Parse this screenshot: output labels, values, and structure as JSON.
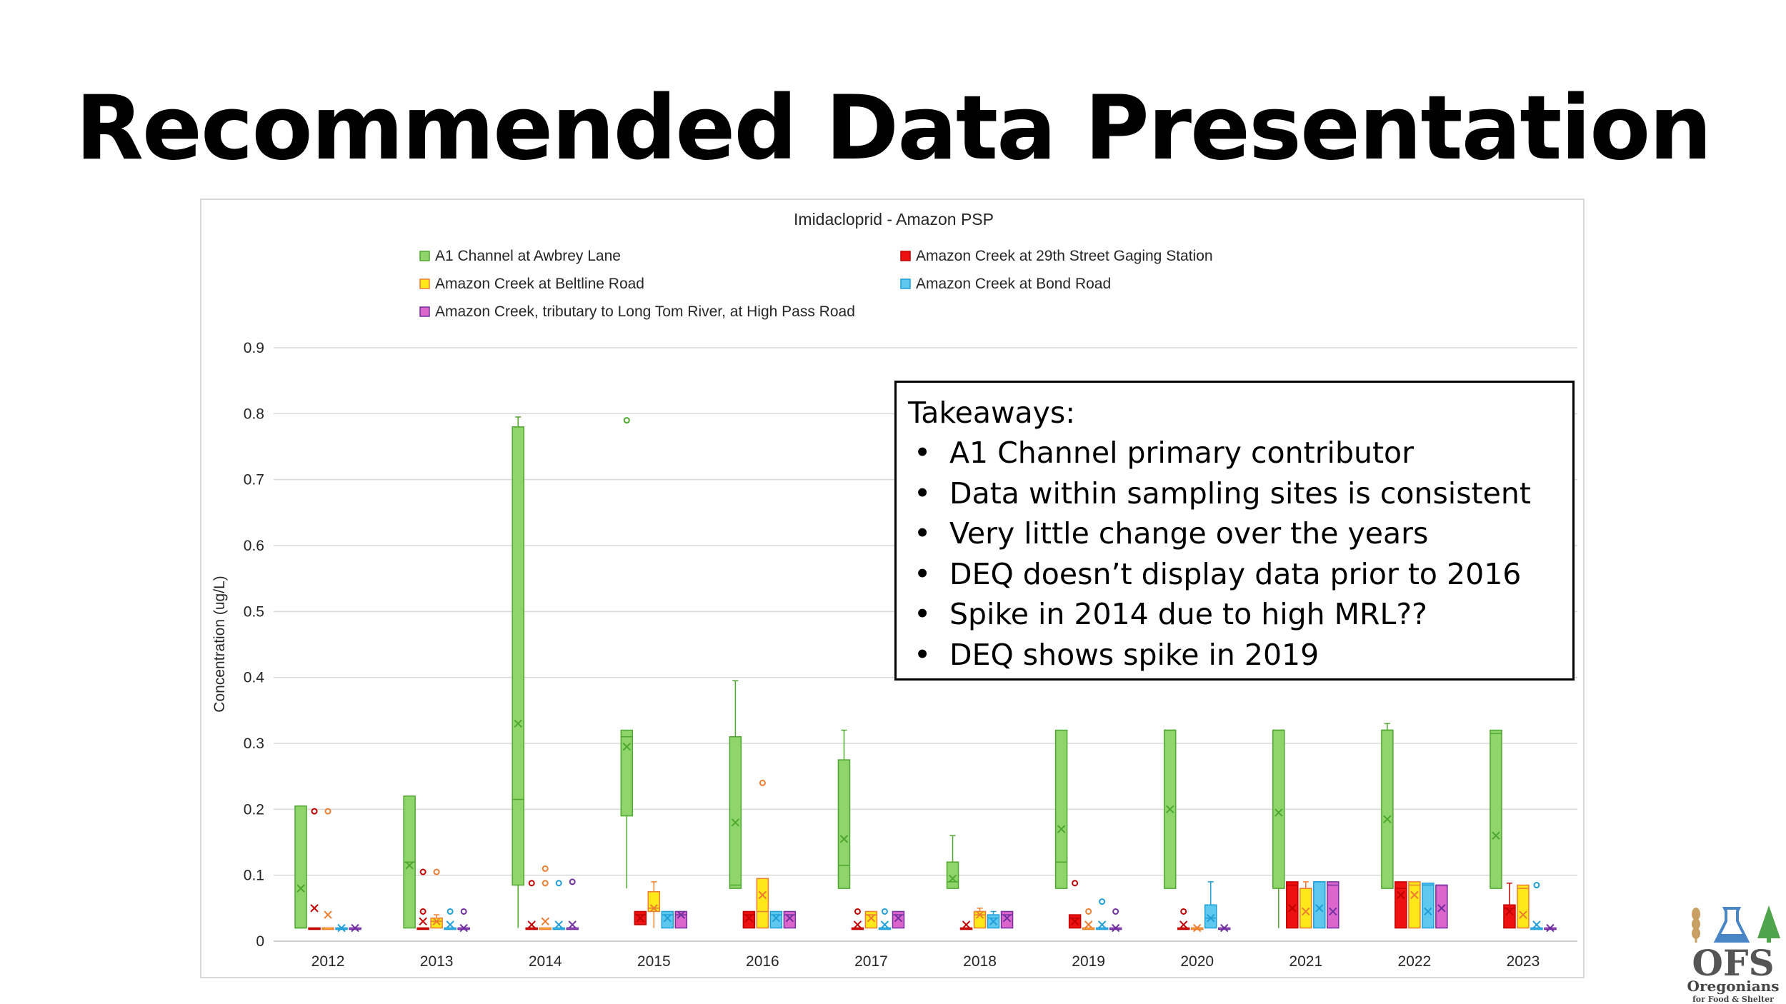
{
  "slide": {
    "title": "Recommended Data Presentation"
  },
  "takeaways": {
    "heading": "Takeaways:",
    "items": [
      "A1 Channel primary contributor",
      "Data within sampling sites is consistent",
      "Very little change over the years",
      "DEQ doesn’t display data prior to 2016",
      "Spike in 2014 due to high MRL??",
      "DEQ shows spike in 2019"
    ]
  },
  "logo": {
    "text": "OFS",
    "subtitle_1": "Oregonians",
    "subtitle_2": "for Food & Shelter"
  },
  "chart_data": {
    "type": "box",
    "title": "Imidacloprid - Amazon PSP",
    "ylabel": "Concentration (ug/L)",
    "xlabel": "",
    "ylim": [
      0,
      0.9
    ],
    "yticks": [
      "0",
      "0.1",
      "0.2",
      "0.3",
      "0.4",
      "0.5",
      "0.6",
      "0.7",
      "0.8",
      "0.9"
    ],
    "grid": true,
    "legend_position": "top",
    "categories": [
      "2012",
      "2013",
      "2014",
      "2015",
      "2016",
      "2017",
      "2018",
      "2019",
      "2020",
      "2021",
      "2022",
      "2023"
    ],
    "series": [
      {
        "name": "A1 Channel at Awbrey Lane",
        "color": "#8fd56b",
        "stroke": "#4ea72e",
        "boxes": [
          {
            "min": 0.02,
            "q1": 0.02,
            "median": 0.02,
            "q3": 0.205,
            "max": 0.205,
            "mean": 0.08,
            "outliers": []
          },
          {
            "min": 0.02,
            "q1": 0.02,
            "median": 0.12,
            "q3": 0.22,
            "max": 0.22,
            "mean": 0.115,
            "outliers": []
          },
          {
            "min": 0.02,
            "q1": 0.085,
            "median": 0.215,
            "q3": 0.78,
            "max": 0.795,
            "mean": 0.33,
            "outliers": []
          },
          {
            "min": 0.08,
            "q1": 0.19,
            "median": 0.31,
            "q3": 0.32,
            "max": 0.32,
            "mean": 0.295,
            "outliers": [
              0.79
            ]
          },
          {
            "min": 0.08,
            "q1": 0.08,
            "median": 0.085,
            "q3": 0.31,
            "max": 0.395,
            "mean": 0.18,
            "outliers": []
          },
          {
            "min": 0.08,
            "q1": 0.08,
            "median": 0.115,
            "q3": 0.275,
            "max": 0.32,
            "mean": 0.155,
            "outliers": []
          },
          {
            "min": 0.08,
            "q1": 0.08,
            "median": 0.09,
            "q3": 0.12,
            "max": 0.16,
            "mean": 0.095,
            "outliers": []
          },
          {
            "min": 0.08,
            "q1": 0.08,
            "median": 0.12,
            "q3": 0.32,
            "max": 0.32,
            "mean": 0.17,
            "outliers": []
          },
          {
            "min": 0.08,
            "q1": 0.08,
            "median": 0.32,
            "q3": 0.32,
            "max": 0.32,
            "mean": 0.2,
            "outliers": []
          },
          {
            "min": 0.02,
            "q1": 0.08,
            "median": 0.32,
            "q3": 0.32,
            "max": 0.32,
            "mean": 0.195,
            "outliers": []
          },
          {
            "min": 0.08,
            "q1": 0.08,
            "median": 0.32,
            "q3": 0.32,
            "max": 0.33,
            "mean": 0.185,
            "outliers": []
          },
          {
            "min": 0.08,
            "q1": 0.08,
            "median": 0.315,
            "q3": 0.32,
            "max": 0.32,
            "mean": 0.16,
            "outliers": []
          }
        ]
      },
      {
        "name": "Amazon Creek at 29th Street Gaging Station",
        "color": "#ee1111",
        "stroke": "#c00000",
        "boxes": [
          {
            "min": 0.02,
            "q1": 0.02,
            "median": 0.02,
            "q3": 0.02,
            "max": 0.02,
            "mean": 0.05,
            "outliers": [
              0.197
            ]
          },
          {
            "min": 0.02,
            "q1": 0.02,
            "median": 0.02,
            "q3": 0.02,
            "max": 0.02,
            "mean": 0.03,
            "outliers": [
              0.105,
              0.045
            ]
          },
          {
            "min": 0.02,
            "q1": 0.02,
            "median": 0.02,
            "q3": 0.02,
            "max": 0.02,
            "mean": 0.025,
            "outliers": [
              0.088
            ]
          },
          {
            "min": 0.025,
            "q1": 0.025,
            "median": 0.04,
            "q3": 0.045,
            "max": 0.045,
            "mean": 0.035,
            "outliers": []
          },
          {
            "min": 0.02,
            "q1": 0.02,
            "median": 0.04,
            "q3": 0.045,
            "max": 0.045,
            "mean": 0.035,
            "outliers": []
          },
          {
            "min": 0.02,
            "q1": 0.02,
            "median": 0.02,
            "q3": 0.02,
            "max": 0.02,
            "mean": 0.025,
            "outliers": [
              0.045
            ]
          },
          {
            "min": 0.02,
            "q1": 0.02,
            "median": 0.02,
            "q3": 0.02,
            "max": 0.02,
            "mean": 0.025,
            "outliers": []
          },
          {
            "min": 0.02,
            "q1": 0.02,
            "median": 0.035,
            "q3": 0.04,
            "max": 0.04,
            "mean": 0.03,
            "outliers": [
              0.088
            ]
          },
          {
            "min": 0.02,
            "q1": 0.02,
            "median": 0.02,
            "q3": 0.02,
            "max": 0.02,
            "mean": 0.025,
            "outliers": [
              0.045
            ]
          },
          {
            "min": 0.02,
            "q1": 0.02,
            "median": 0.085,
            "q3": 0.09,
            "max": 0.09,
            "mean": 0.05,
            "outliers": []
          },
          {
            "min": 0.02,
            "q1": 0.02,
            "median": 0.08,
            "q3": 0.09,
            "max": 0.09,
            "mean": 0.07,
            "outliers": []
          },
          {
            "min": 0.02,
            "q1": 0.02,
            "median": 0.05,
            "q3": 0.055,
            "max": 0.088,
            "mean": 0.045,
            "outliers": []
          }
        ]
      },
      {
        "name": "Amazon Creek at Beltline Road",
        "color": "#ffe81a",
        "stroke": "#ed7d31",
        "boxes": [
          {
            "min": 0.02,
            "q1": 0.02,
            "median": 0.02,
            "q3": 0.02,
            "max": 0.02,
            "mean": 0.04,
            "outliers": [
              0.197
            ]
          },
          {
            "min": 0.02,
            "q1": 0.02,
            "median": 0.03,
            "q3": 0.035,
            "max": 0.04,
            "mean": 0.03,
            "outliers": [
              0.105
            ]
          },
          {
            "min": 0.02,
            "q1": 0.02,
            "median": 0.02,
            "q3": 0.02,
            "max": 0.02,
            "mean": 0.03,
            "outliers": [
              0.11,
              0.088
            ]
          },
          {
            "min": 0.02,
            "q1": 0.045,
            "median": 0.05,
            "q3": 0.075,
            "max": 0.09,
            "mean": 0.05,
            "outliers": []
          },
          {
            "min": 0.02,
            "q1": 0.02,
            "median": 0.045,
            "q3": 0.095,
            "max": 0.095,
            "mean": 0.07,
            "outliers": [
              0.24
            ]
          },
          {
            "min": 0.02,
            "q1": 0.02,
            "median": 0.04,
            "q3": 0.045,
            "max": 0.045,
            "mean": 0.035,
            "outliers": []
          },
          {
            "min": 0.02,
            "q1": 0.02,
            "median": 0.04,
            "q3": 0.045,
            "max": 0.05,
            "mean": 0.04,
            "outliers": []
          },
          {
            "min": 0.02,
            "q1": 0.02,
            "median": 0.02,
            "q3": 0.02,
            "max": 0.02,
            "mean": 0.025,
            "outliers": [
              0.045
            ]
          },
          {
            "min": 0.02,
            "q1": 0.02,
            "median": 0.02,
            "q3": 0.02,
            "max": 0.02,
            "mean": 0.02,
            "outliers": []
          },
          {
            "min": 0.02,
            "q1": 0.02,
            "median": 0.08,
            "q3": 0.08,
            "max": 0.09,
            "mean": 0.045,
            "outliers": []
          },
          {
            "min": 0.02,
            "q1": 0.02,
            "median": 0.085,
            "q3": 0.09,
            "max": 0.09,
            "mean": 0.07,
            "outliers": []
          },
          {
            "min": 0.02,
            "q1": 0.02,
            "median": 0.08,
            "q3": 0.085,
            "max": 0.085,
            "mean": 0.04,
            "outliers": []
          }
        ]
      },
      {
        "name": "Amazon Creek at Bond Road",
        "color": "#5ec8ee",
        "stroke": "#1f9ed8",
        "boxes": [
          {
            "min": 0.02,
            "q1": 0.02,
            "median": 0.02,
            "q3": 0.02,
            "max": 0.02,
            "mean": 0.02,
            "outliers": []
          },
          {
            "min": 0.02,
            "q1": 0.02,
            "median": 0.02,
            "q3": 0.02,
            "max": 0.02,
            "mean": 0.025,
            "outliers": [
              0.045
            ]
          },
          {
            "min": 0.02,
            "q1": 0.02,
            "median": 0.02,
            "q3": 0.02,
            "max": 0.02,
            "mean": 0.025,
            "outliers": [
              0.088
            ]
          },
          {
            "min": 0.02,
            "q1": 0.02,
            "median": 0.04,
            "q3": 0.045,
            "max": 0.045,
            "mean": 0.035,
            "outliers": []
          },
          {
            "min": 0.02,
            "q1": 0.02,
            "median": 0.04,
            "q3": 0.045,
            "max": 0.045,
            "mean": 0.035,
            "outliers": []
          },
          {
            "min": 0.02,
            "q1": 0.02,
            "median": 0.02,
            "q3": 0.02,
            "max": 0.02,
            "mean": 0.025,
            "outliers": [
              0.045
            ]
          },
          {
            "min": 0.02,
            "q1": 0.02,
            "median": 0.035,
            "q3": 0.04,
            "max": 0.045,
            "mean": 0.03,
            "outliers": []
          },
          {
            "min": 0.02,
            "q1": 0.02,
            "median": 0.02,
            "q3": 0.02,
            "max": 0.02,
            "mean": 0.025,
            "outliers": [
              0.06
            ]
          },
          {
            "min": 0.02,
            "q1": 0.02,
            "median": 0.035,
            "q3": 0.055,
            "max": 0.09,
            "mean": 0.035,
            "outliers": []
          },
          {
            "min": 0.02,
            "q1": 0.02,
            "median": 0.09,
            "q3": 0.09,
            "max": 0.09,
            "mean": 0.05,
            "outliers": []
          },
          {
            "min": 0.02,
            "q1": 0.02,
            "median": 0.085,
            "q3": 0.088,
            "max": 0.088,
            "mean": 0.045,
            "outliers": []
          },
          {
            "min": 0.02,
            "q1": 0.02,
            "median": 0.02,
            "q3": 0.02,
            "max": 0.02,
            "mean": 0.025,
            "outliers": [
              0.085
            ]
          }
        ]
      },
      {
        "name": "Amazon Creek, tributary to Long Tom River, at High Pass Road",
        "color": "#dd66cc",
        "stroke": "#7030a0",
        "boxes": [
          {
            "min": 0.02,
            "q1": 0.02,
            "median": 0.02,
            "q3": 0.02,
            "max": 0.02,
            "mean": 0.02,
            "outliers": []
          },
          {
            "min": 0.02,
            "q1": 0.02,
            "median": 0.02,
            "q3": 0.02,
            "max": 0.02,
            "mean": 0.02,
            "outliers": [
              0.045
            ]
          },
          {
            "min": 0.02,
            "q1": 0.02,
            "median": 0.02,
            "q3": 0.02,
            "max": 0.02,
            "mean": 0.025,
            "outliers": [
              0.09
            ]
          },
          {
            "min": 0.02,
            "q1": 0.02,
            "median": 0.04,
            "q3": 0.045,
            "max": 0.045,
            "mean": 0.04,
            "outliers": []
          },
          {
            "min": 0.02,
            "q1": 0.02,
            "median": 0.04,
            "q3": 0.045,
            "max": 0.045,
            "mean": 0.035,
            "outliers": []
          },
          {
            "min": 0.02,
            "q1": 0.02,
            "median": 0.04,
            "q3": 0.045,
            "max": 0.045,
            "mean": 0.035,
            "outliers": []
          },
          {
            "min": 0.02,
            "q1": 0.02,
            "median": 0.04,
            "q3": 0.045,
            "max": 0.045,
            "mean": 0.035,
            "outliers": []
          },
          {
            "min": 0.02,
            "q1": 0.02,
            "median": 0.02,
            "q3": 0.02,
            "max": 0.02,
            "mean": 0.02,
            "outliers": [
              0.045
            ]
          },
          {
            "min": 0.02,
            "q1": 0.02,
            "median": 0.02,
            "q3": 0.02,
            "max": 0.02,
            "mean": 0.02,
            "outliers": []
          },
          {
            "min": 0.02,
            "q1": 0.02,
            "median": 0.085,
            "q3": 0.09,
            "max": 0.09,
            "mean": 0.045,
            "outliers": []
          },
          {
            "min": 0.02,
            "q1": 0.02,
            "median": 0.085,
            "q3": 0.085,
            "max": 0.085,
            "mean": 0.05,
            "outliers": []
          },
          {
            "min": 0.02,
            "q1": 0.02,
            "median": 0.02,
            "q3": 0.02,
            "max": 0.02,
            "mean": 0.02,
            "outliers": []
          }
        ]
      }
    ]
  }
}
